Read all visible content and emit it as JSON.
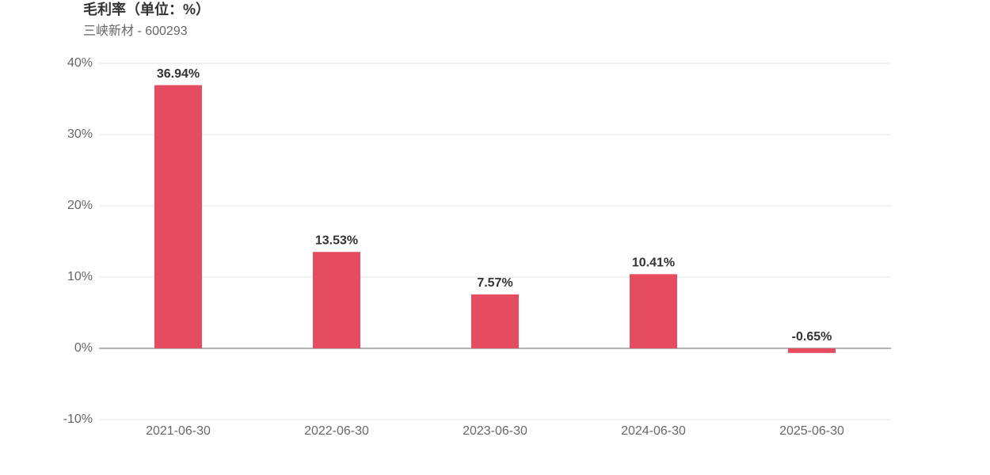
{
  "chart_data": {
    "type": "bar",
    "title": "毛利率（单位：%）",
    "subtitle": "三峡新材 - 600293",
    "categories": [
      "2021-06-30",
      "2022-06-30",
      "2023-06-30",
      "2024-06-30",
      "2025-06-30"
    ],
    "values": [
      36.94,
      13.53,
      7.57,
      10.41,
      -0.65
    ],
    "value_labels": [
      "36.94%",
      "13.53%",
      "7.57%",
      "10.41%",
      "-0.65%"
    ],
    "color": "#e64c5f",
    "ylim": [
      -10,
      40
    ],
    "yticks": [
      {
        "value": -10,
        "label": "-10%"
      },
      {
        "value": 0,
        "label": "0%"
      },
      {
        "value": 10,
        "label": "10%"
      },
      {
        "value": 20,
        "label": "20%"
      },
      {
        "value": 30,
        "label": "30%"
      },
      {
        "value": 40,
        "label": "40%"
      }
    ],
    "grid": true
  }
}
